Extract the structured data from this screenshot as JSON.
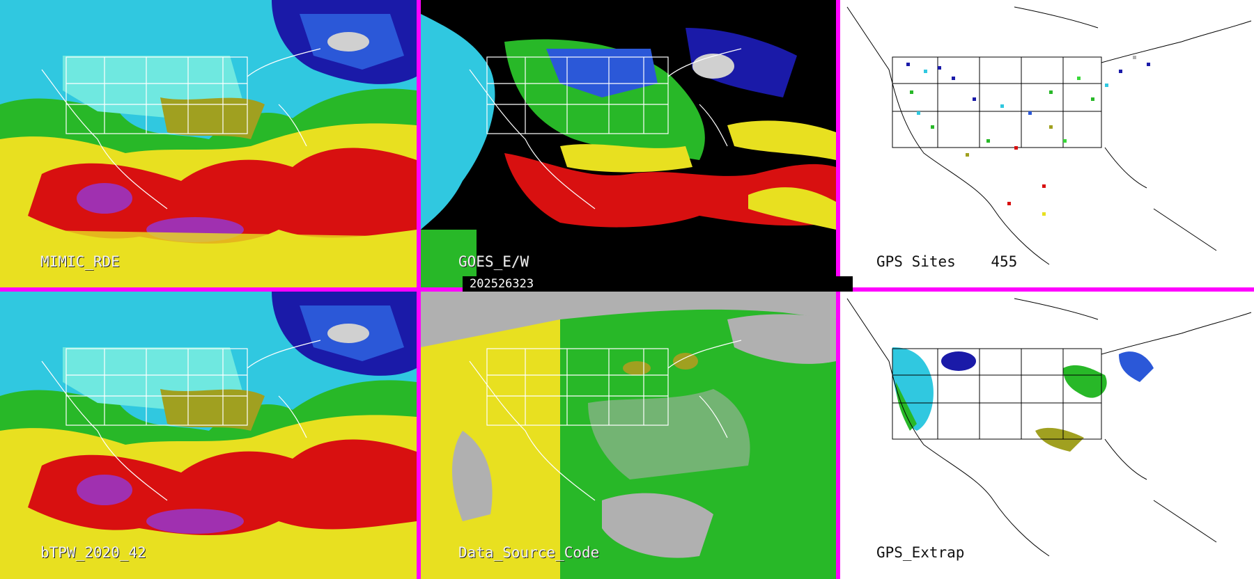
{
  "panels": [
    {
      "id": "p1",
      "label": "MIMIC_RDE",
      "kind": "tpw"
    },
    {
      "id": "p2",
      "label": "GOES_E/W",
      "kind": "goes"
    },
    {
      "id": "p3",
      "label": "GPS Sites    455",
      "kind": "gps-sites"
    },
    {
      "id": "p4",
      "label": "bTPW_2020_42",
      "kind": "tpw"
    },
    {
      "id": "p5",
      "label": "Data_Source_Code",
      "kind": "source"
    },
    {
      "id": "p6",
      "label": "GPS_Extrap",
      "kind": "gps-extrap"
    }
  ],
  "timestamp": "202526323",
  "colors": {
    "border": "#ff00ff",
    "palette": [
      "#1a1aa8",
      "#2b58d8",
      "#30c8e0",
      "#6fe8e0",
      "#28b828",
      "#38d838",
      "#a0a020",
      "#e8e020",
      "#d81010",
      "#a030b0",
      "#000000",
      "#b0b0b0"
    ]
  }
}
